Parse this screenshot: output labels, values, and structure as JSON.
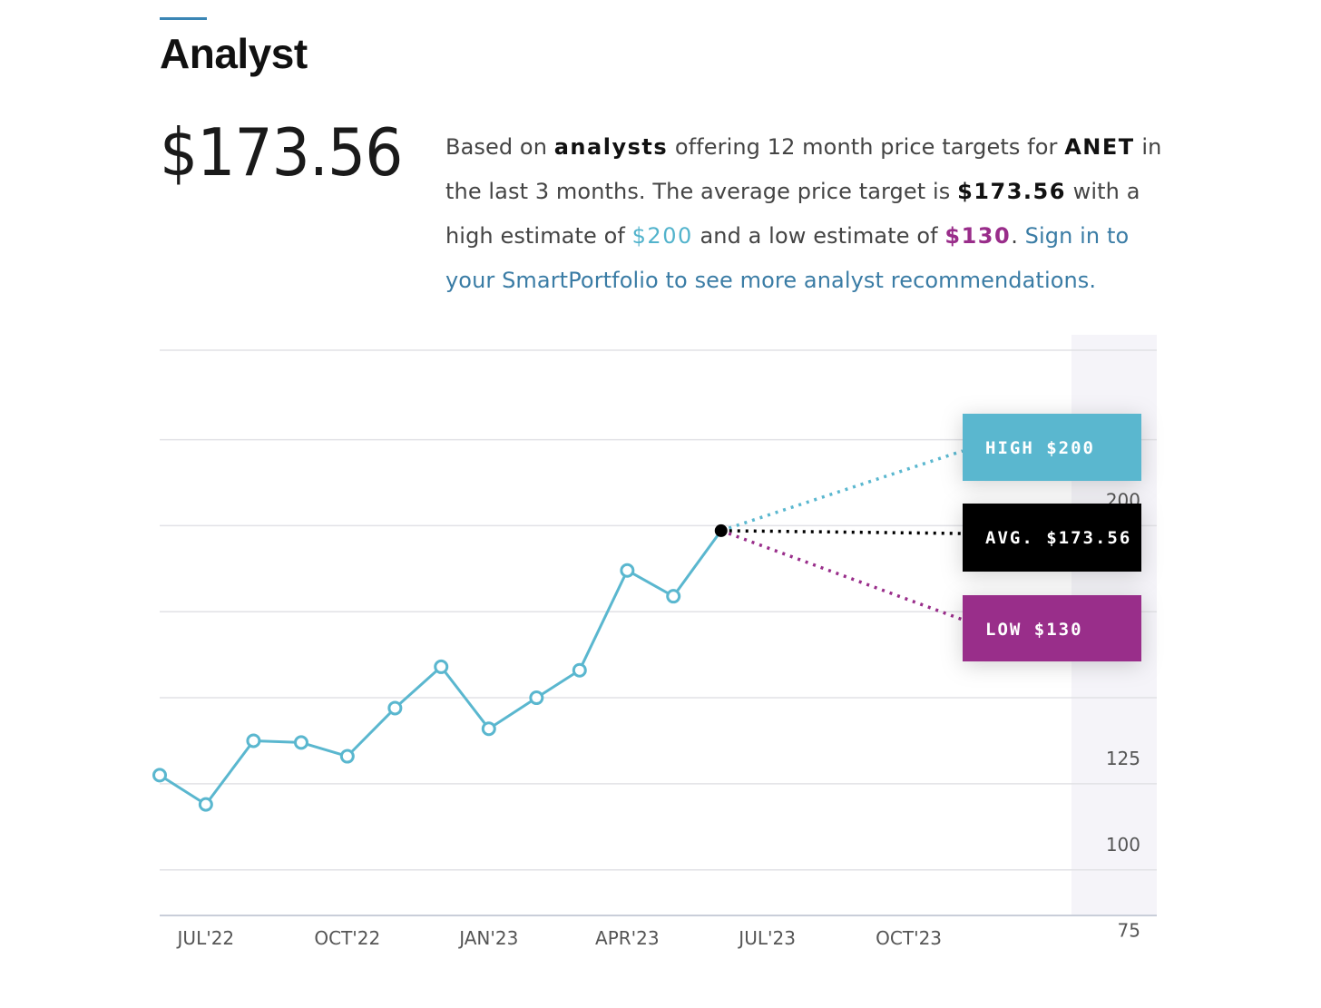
{
  "header": {
    "title": "Analyst",
    "price": "$173.56"
  },
  "summary": {
    "t1": "Based on ",
    "b1": "analysts",
    "t2": " offering 12 month price targets for ",
    "ticker": "ANET",
    "t3": " in the last 3 months. The average price target is ",
    "avg": "$173.56",
    "t4": " with a high estimate of ",
    "high": "$200",
    "t5": " and a low estimate of ",
    "low": "$130",
    "t6": ". ",
    "link": "Sign in to your SmartPortfolio to see more analyst recommendations."
  },
  "colors": {
    "line": "#5ab7cf",
    "high": "#5ab7cf",
    "avg": "#000000",
    "low": "#992d8a",
    "grid": "#e2e2e6",
    "axis_band": "#f5f4f9",
    "accent": "#3b86b5"
  },
  "chart_data": {
    "type": "line",
    "y_ticks": [
      75,
      100,
      125,
      150,
      175,
      200
    ],
    "y_tick_labels": [
      "75",
      "100",
      "125",
      "",
      "",
      "200"
    ],
    "ylim": [
      62,
      226
    ],
    "x_tick_labels": [
      "JUL'22",
      "OCT'22",
      "JAN'23",
      "APR'23",
      "JUL'23",
      "OCT'23"
    ],
    "x_tick_dates": [
      "2022-07-01",
      "2022-10-01",
      "2023-01-01",
      "2023-04-01",
      "2023-07-01",
      "2023-10-01"
    ],
    "xlim": [
      "2022-06-01",
      "2023-12-01"
    ],
    "series": [
      {
        "points": [
          {
            "x": "2022-06-01",
            "y": 102.5
          },
          {
            "x": "2022-07-01",
            "y": 94
          },
          {
            "x": "2022-08-01",
            "y": 112.5
          },
          {
            "x": "2022-09-01",
            "y": 112
          },
          {
            "x": "2022-10-01",
            "y": 108
          },
          {
            "x": "2022-11-01",
            "y": 122
          },
          {
            "x": "2022-12-01",
            "y": 134
          },
          {
            "x": "2023-01-01",
            "y": 116
          },
          {
            "x": "2023-02-01",
            "y": 125
          },
          {
            "x": "2023-03-01",
            "y": 133
          },
          {
            "x": "2023-04-01",
            "y": 162
          },
          {
            "x": "2023-05-01",
            "y": 154.5
          },
          {
            "x": "2023-06-01",
            "y": 173.56
          }
        ]
      }
    ],
    "forecast": {
      "origin": {
        "x": "2023-06-01",
        "y": 173.56
      },
      "high": {
        "label": "HIGH $200",
        "value": 200
      },
      "avg": {
        "label": "AVG. $173.56",
        "value": 173.56
      },
      "low": {
        "label": "LOW $130",
        "value": 130
      }
    }
  }
}
